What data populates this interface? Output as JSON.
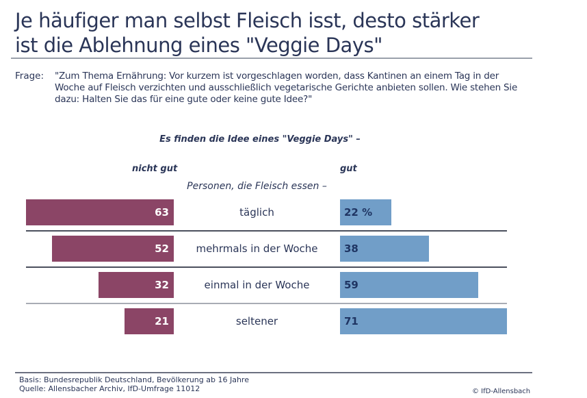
{
  "title_lines": [
    "Je häufiger man selbst Fleisch isst, desto stärker",
    "ist die Ablehnung eines \"Veggie Days\""
  ],
  "question": {
    "label": "Frage:",
    "text": "\"Zum Thema Ernährung: Vor kurzem ist vorgeschlagen worden, dass Kantinen an einem Tag in der Woche auf Fleisch verzichten und ausschließlich vegetarische Gerichte anbieten sollen. Wie stehen Sie dazu: Halten Sie das für eine gute oder keine gute Idee?\""
  },
  "chart_data": {
    "type": "bar",
    "orientation": "horizontal-diverging",
    "title": "Es finden die Idee eines \"Veggie Days\" –",
    "category_header": "Personen, die Fleisch essen –",
    "categories": [
      "täglich",
      "mehrmals in der Woche",
      "einmal in der Woche",
      "seltener"
    ],
    "series": [
      {
        "name": "nicht gut",
        "values": [
          63,
          52,
          32,
          21
        ],
        "color": "#8b4566",
        "labels": [
          "63",
          "52",
          "32",
          "21"
        ]
      },
      {
        "name": "gut",
        "values": [
          22,
          38,
          59,
          71
        ],
        "color": "#719ec8",
        "labels": [
          "22 %",
          "38",
          "59",
          "71"
        ]
      }
    ],
    "unit": "%",
    "grid": false
  },
  "footer": {
    "basis": "Basis: Bundesrepublik Deutschland, Bevölkerung ab 16 Jahre",
    "source": "Quelle: Allensbacher Archiv, IfD-Umfrage 11012",
    "copyright": "© IfD-Allensbach"
  }
}
